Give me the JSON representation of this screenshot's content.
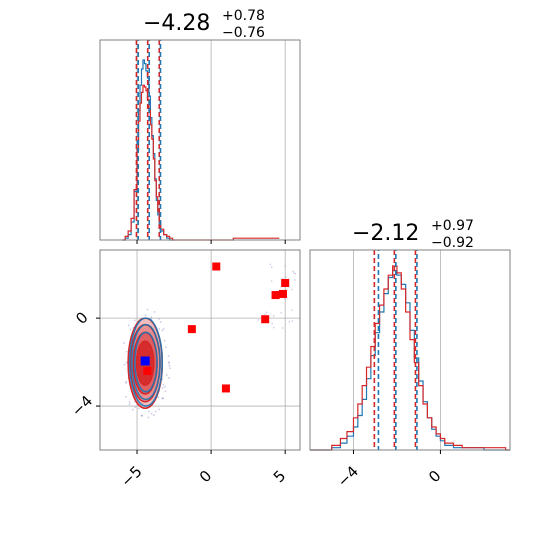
{
  "colors": {
    "blue": "#1f77b4",
    "red": "#d62728",
    "red_marker": "#ff0000",
    "blue_marker": "#0000ff",
    "grid": "#b0b0b0",
    "frame": "#808080",
    "scatter_dots": "#a8a8d8"
  },
  "chart_data": [
    {
      "type": "histogram",
      "panel": "top-left marginal",
      "title": {
        "value": "−4.28",
        "plus": "+0.78",
        "minus": "−0.76"
      },
      "x_range": [
        -7.5,
        6
      ],
      "vlines": {
        "red": [
          -5.04,
          -4.28,
          -3.5
        ],
        "blue": [
          -5.02,
          -4.28,
          -3.52
        ]
      },
      "series": [
        {
          "color": "blue",
          "x": [
            -6.0,
            -5.8,
            -5.6,
            -5.4,
            -5.2,
            -5.0,
            -4.9,
            -4.8,
            -4.7,
            -4.6,
            -4.5,
            -4.4,
            -4.3,
            -4.2,
            -4.1,
            -4.0,
            -3.9,
            -3.8,
            -3.7,
            -3.6,
            -3.5,
            -3.4,
            -3.2,
            -3.0,
            -2.8,
            -2.6
          ],
          "y": [
            0.0,
            0.01,
            0.03,
            0.1,
            0.27,
            0.55,
            0.72,
            0.86,
            0.95,
            1.0,
            0.98,
            0.94,
            0.9,
            0.8,
            0.68,
            0.58,
            0.48,
            0.34,
            0.22,
            0.14,
            0.08,
            0.05,
            0.03,
            0.01,
            0.0,
            0.0
          ]
        },
        {
          "color": "red",
          "x": [
            -6.0,
            -5.8,
            -5.6,
            -5.4,
            -5.2,
            -5.0,
            -4.9,
            -4.8,
            -4.7,
            -4.6,
            -4.5,
            -4.4,
            -4.3,
            -4.2,
            -4.1,
            -4.0,
            -3.9,
            -3.8,
            -3.7,
            -3.6,
            -3.5,
            -3.4,
            -3.2,
            -3.0,
            -2.8,
            -2.6,
            -1.5,
            0.0,
            1.5,
            3.0,
            4.5
          ],
          "y": [
            0.0,
            0.02,
            0.05,
            0.12,
            0.28,
            0.5,
            0.66,
            0.76,
            0.82,
            0.86,
            0.85,
            0.83,
            0.78,
            0.72,
            0.64,
            0.56,
            0.45,
            0.33,
            0.24,
            0.16,
            0.1,
            0.06,
            0.03,
            0.02,
            0.01,
            0.0,
            0.0,
            0.0,
            0.01,
            0.01,
            0.01
          ]
        }
      ]
    },
    {
      "type": "histogram",
      "panel": "bottom-right marginal",
      "title": {
        "value": "−2.12",
        "plus": "+0.97",
        "minus": "−0.92"
      },
      "x_range": [
        -6.0,
        3.2
      ],
      "vlines": {
        "red": [
          -3.04,
          -2.12,
          -1.15
        ],
        "blue": [
          -2.92,
          -2.12,
          -1.15
        ]
      },
      "series": [
        {
          "color": "blue",
          "x": [
            -6.0,
            -5.0,
            -4.6,
            -4.3,
            -4.0,
            -3.8,
            -3.6,
            -3.4,
            -3.2,
            -3.0,
            -2.8,
            -2.6,
            -2.4,
            -2.2,
            -2.0,
            -1.8,
            -1.6,
            -1.4,
            -1.2,
            -1.0,
            -0.8,
            -0.6,
            -0.4,
            -0.2,
            0.0,
            0.2,
            0.6,
            1.0,
            2.0,
            3.0
          ],
          "y": [
            0.0,
            0.01,
            0.03,
            0.06,
            0.1,
            0.15,
            0.22,
            0.31,
            0.41,
            0.51,
            0.6,
            0.68,
            0.75,
            0.78,
            0.76,
            0.72,
            0.64,
            0.52,
            0.4,
            0.3,
            0.21,
            0.14,
            0.09,
            0.06,
            0.04,
            0.02,
            0.01,
            0.01,
            0.0,
            0.0
          ]
        },
        {
          "color": "red",
          "x": [
            -6.0,
            -5.0,
            -4.6,
            -4.3,
            -4.0,
            -3.8,
            -3.6,
            -3.4,
            -3.2,
            -3.0,
            -2.8,
            -2.6,
            -2.4,
            -2.2,
            -2.0,
            -1.8,
            -1.6,
            -1.4,
            -1.2,
            -1.0,
            -0.8,
            -0.6,
            -0.4,
            -0.2,
            0.0,
            0.2,
            0.6,
            1.0,
            2.0,
            3.0
          ],
          "y": [
            0.0,
            0.02,
            0.05,
            0.08,
            0.14,
            0.2,
            0.28,
            0.36,
            0.45,
            0.55,
            0.63,
            0.7,
            0.76,
            0.8,
            0.77,
            0.7,
            0.6,
            0.48,
            0.38,
            0.28,
            0.2,
            0.14,
            0.1,
            0.07,
            0.05,
            0.03,
            0.02,
            0.01,
            0.01,
            0.0
          ]
        }
      ]
    },
    {
      "type": "scatter",
      "panel": "bottom-left 2D",
      "x_range": [
        -7.5,
        6
      ],
      "y_range": [
        -6,
        3.1
      ],
      "contours": {
        "center": [
          -4.45,
          -2.05
        ],
        "red_radii": [
          [
            1.15,
            2.05
          ],
          [
            1.0,
            1.75
          ],
          [
            0.8,
            1.4
          ],
          [
            0.58,
            1.0
          ]
        ],
        "blue_radii": [
          [
            1.1,
            2.0
          ],
          [
            0.95,
            1.7
          ],
          [
            0.75,
            1.35
          ]
        ]
      },
      "red_markers": [
        {
          "x": 0.35,
          "y": 2.35
        },
        {
          "x": 5.0,
          "y": 1.6
        },
        {
          "x": 4.35,
          "y": 1.05
        },
        {
          "x": 4.85,
          "y": 1.1
        },
        {
          "x": -1.3,
          "y": -0.5
        },
        {
          "x": 3.65,
          "y": -0.05
        },
        {
          "x": 1.0,
          "y": -3.2
        },
        {
          "x": -4.3,
          "y": -2.4
        }
      ],
      "blue_marker": {
        "x": -4.45,
        "y": -1.95
      }
    }
  ],
  "axes": {
    "scatter_x_ticks": [
      {
        "value": -5,
        "label": "−5"
      },
      {
        "value": 0,
        "label": "0"
      },
      {
        "value": 5,
        "label": "5"
      }
    ],
    "scatter_y_ticks": [
      {
        "value": 0,
        "label": "0"
      },
      {
        "value": -4,
        "label": "−4"
      }
    ],
    "right_x_ticks": [
      {
        "value": -4,
        "label": "−4"
      },
      {
        "value": 0,
        "label": "0"
      }
    ]
  }
}
